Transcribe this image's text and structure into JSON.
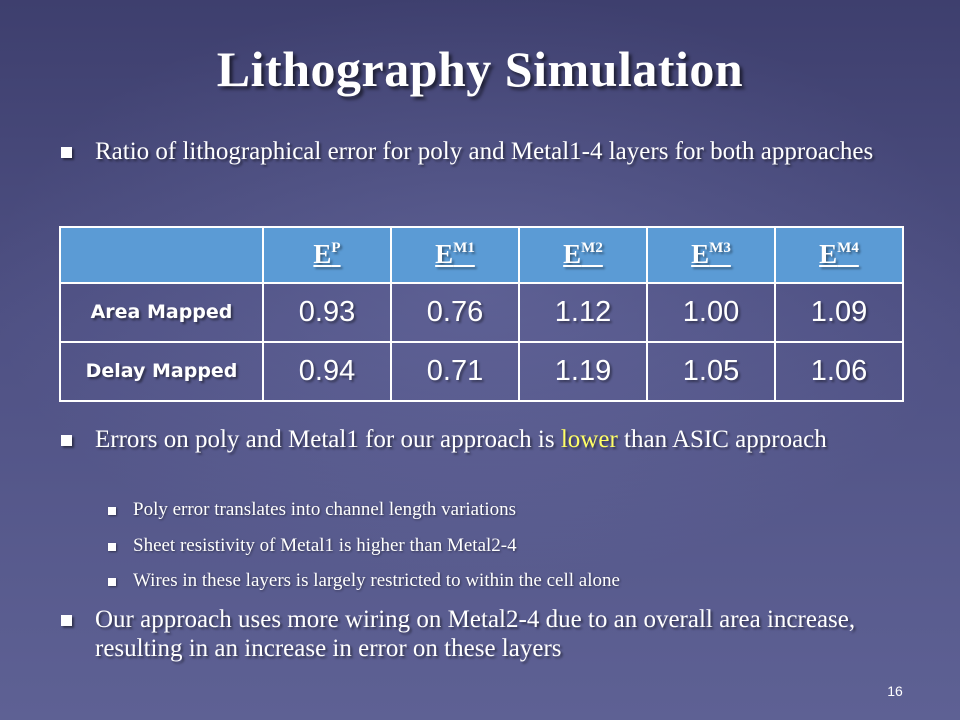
{
  "slide": {
    "title": "Lithography Simulation",
    "page_number": "16"
  },
  "bullets": {
    "b1": "Ratio of lithographical error for poly and Metal1-4 layers for both approaches",
    "b2_before": "Errors on poly and Metal1 for our approach is ",
    "b2_highlight": "lower",
    "b2_after": " than ASIC approach",
    "b2_highlight_color": "#ffff66",
    "subs": [
      "Poly error translates into channel length variations",
      "Sheet resistivity of Metal1 is higher than Metal2-4",
      "Wires in these layers is largely restricted to within the cell alone"
    ],
    "b3": "Our approach uses more wiring on Metal2-4 due to an overall area increase, resulting in an increase in error on these layers"
  },
  "table": {
    "header_color": "#5b9bd5",
    "columns": [
      {
        "base": "E",
        "sup": "P"
      },
      {
        "base": "E",
        "sup": "M1"
      },
      {
        "base": "E",
        "sup": "M2"
      },
      {
        "base": "E",
        "sup": "M3"
      },
      {
        "base": "E",
        "sup": "M4"
      }
    ],
    "rows": [
      {
        "label": "Area Mapped",
        "values": [
          "0.93",
          "0.76",
          "1.12",
          "1.00",
          "1.09"
        ]
      },
      {
        "label": "Delay Mapped",
        "values": [
          "0.94",
          "0.71",
          "1.19",
          "1.05",
          "1.06"
        ]
      }
    ]
  }
}
